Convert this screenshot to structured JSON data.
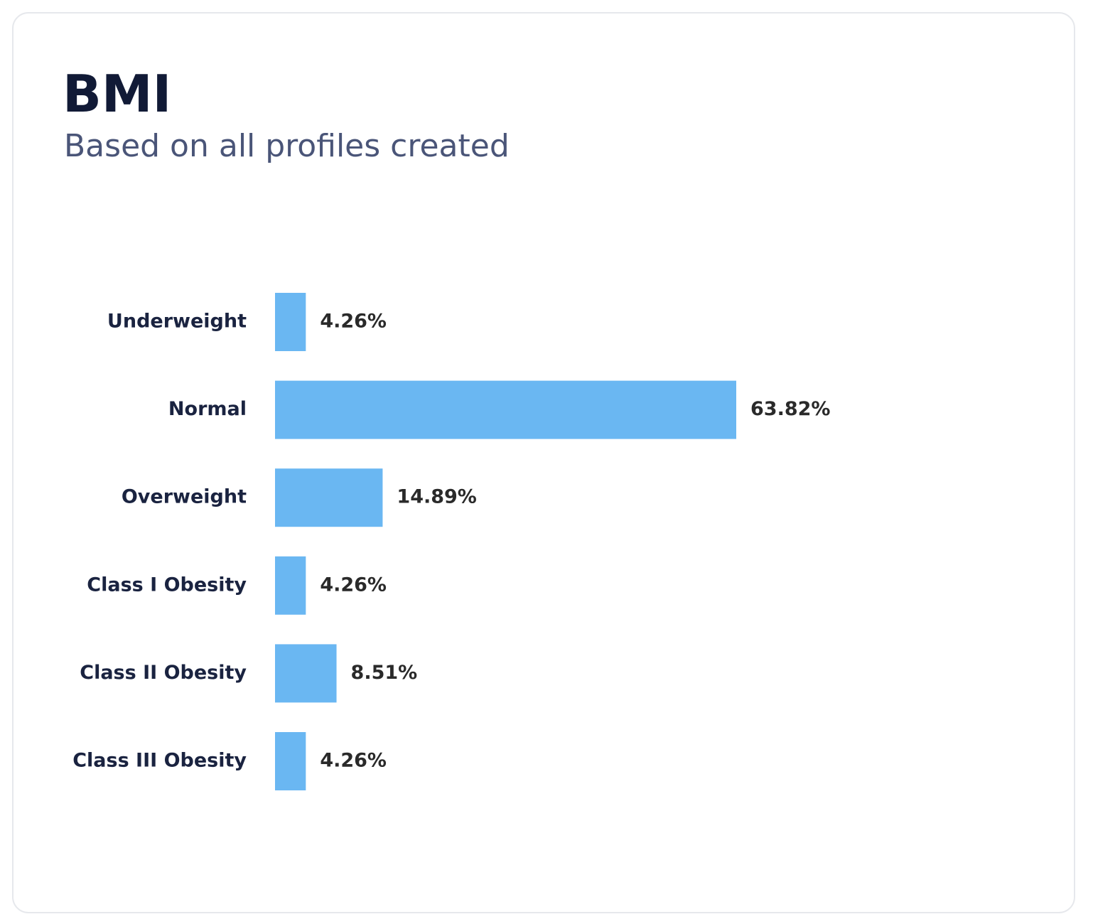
{
  "chart_data": {
    "type": "bar",
    "orientation": "horizontal",
    "title": "BMI",
    "subtitle": "Based on all profiles created",
    "categories": [
      "Underweight",
      "Normal",
      "Overweight",
      "Class I Obesity",
      "Class II Obesity",
      "Class III Obesity"
    ],
    "values": [
      4.26,
      63.82,
      14.89,
      4.26,
      8.51,
      4.26
    ],
    "value_labels": [
      "4.26%",
      "63.82%",
      "14.89%",
      "4.26%",
      "8.51%",
      "4.26%"
    ],
    "color": "#6ab7f2"
  }
}
